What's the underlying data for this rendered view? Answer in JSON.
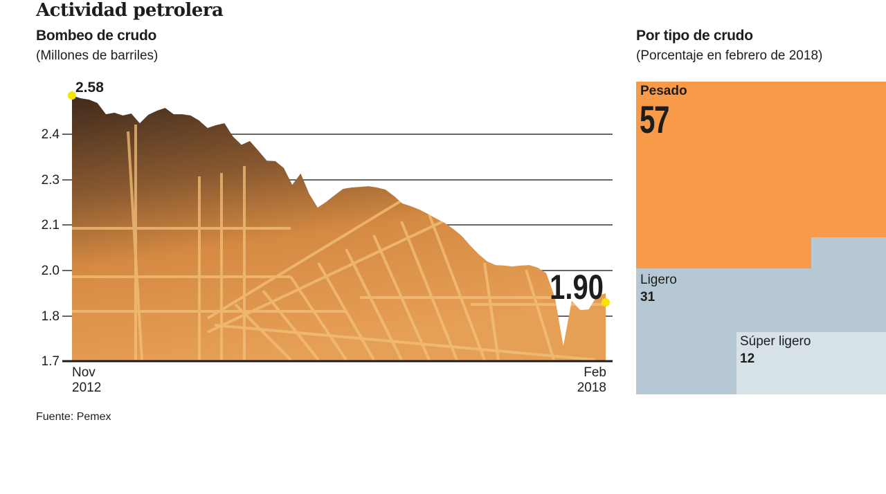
{
  "title": "Actividad petrolera",
  "source": "Fuente: Pemex",
  "chart_data": [
    {
      "type": "area",
      "title": "Bombeo de crudo",
      "subtitle": "(Millones de barriles)",
      "x_start": "2012-11",
      "x_end": "2018-02",
      "x_tick_labels": [
        {
          "month": "Nov",
          "year": "2012"
        },
        {
          "month": "Feb",
          "year": "2018"
        }
      ],
      "y_tick_labels": [
        "2.4",
        "2.3",
        "2.1",
        "2.0",
        "1.8",
        "1.7"
      ],
      "ylim": [
        1.7,
        2.58
      ],
      "grid": true,
      "annotations": {
        "first": "2.58",
        "last": "1.90"
      },
      "marker_color": "#F5E600",
      "values": [
        2.58,
        2.567,
        2.561,
        2.545,
        2.493,
        2.5,
        2.487,
        2.496,
        2.451,
        2.49,
        2.509,
        2.522,
        2.493,
        2.493,
        2.487,
        2.464,
        2.429,
        2.442,
        2.451,
        2.395,
        2.377,
        2.385,
        2.364,
        2.342,
        2.341,
        2.326,
        2.278,
        2.314,
        2.238,
        2.177,
        2.202,
        2.232,
        2.26,
        2.266,
        2.269,
        2.272,
        2.266,
        2.257,
        2.229,
        2.195,
        2.183,
        2.168,
        2.149,
        2.128,
        2.109,
        2.091,
        2.076,
        2.055,
        2.036,
        2.02,
        2.012,
        2.011,
        2.009,
        2.011,
        2.012,
        2.006,
        1.988,
        1.882,
        1.734,
        1.867,
        1.827,
        1.83,
        1.89,
        1.9
      ]
    },
    {
      "type": "treemap",
      "title": "Por tipo de crudo",
      "subtitle": "(Porcentaje en febrero de 2018)",
      "items": [
        {
          "label": "Pesado",
          "value": 57,
          "color": "#F79A4A"
        },
        {
          "label": "Ligero",
          "value": 31,
          "color": "#B5C8D4"
        },
        {
          "label": "Súper ligero",
          "value": 12,
          "color": "#D6E1E8"
        }
      ]
    }
  ]
}
